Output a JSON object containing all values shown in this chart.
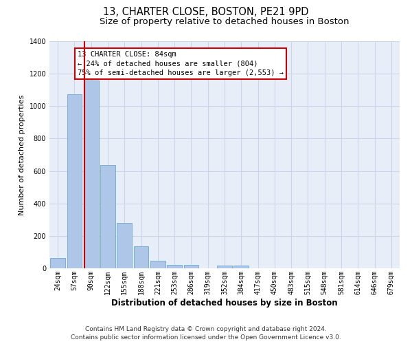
{
  "title1": "13, CHARTER CLOSE, BOSTON, PE21 9PD",
  "title2": "Size of property relative to detached houses in Boston",
  "xlabel": "Distribution of detached houses by size in Boston",
  "ylabel": "Number of detached properties",
  "categories": [
    "24sqm",
    "57sqm",
    "90sqm",
    "122sqm",
    "155sqm",
    "188sqm",
    "221sqm",
    "253sqm",
    "286sqm",
    "319sqm",
    "352sqm",
    "384sqm",
    "417sqm",
    "450sqm",
    "483sqm",
    "515sqm",
    "548sqm",
    "581sqm",
    "614sqm",
    "646sqm",
    "679sqm"
  ],
  "values": [
    62,
    1075,
    1160,
    635,
    280,
    135,
    45,
    20,
    20,
    0,
    15,
    18,
    0,
    0,
    0,
    0,
    0,
    0,
    0,
    0,
    0
  ],
  "bar_color": "#aec6e8",
  "bar_edgecolor": "#7aafd4",
  "red_line_index": 2.05,
  "annotation_line1": "13 CHARTER CLOSE: 84sqm",
  "annotation_line2": "← 24% of detached houses are smaller (804)",
  "annotation_line3": "75% of semi-detached houses are larger (2,553) →",
  "annotation_box_color": "#ffffff",
  "annotation_box_edgecolor": "#cc0000",
  "footer1": "Contains HM Land Registry data © Crown copyright and database right 2024.",
  "footer2": "Contains public sector information licensed under the Open Government Licence v3.0.",
  "grid_color": "#ccd5e8",
  "background_color": "#e8eef8",
  "ylim": [
    0,
    1400
  ],
  "title1_fontsize": 10.5,
  "title2_fontsize": 9.5,
  "xlabel_fontsize": 8.5,
  "ylabel_fontsize": 8,
  "tick_fontsize": 7,
  "annotation_fontsize": 7.5,
  "footer_fontsize": 6.5
}
